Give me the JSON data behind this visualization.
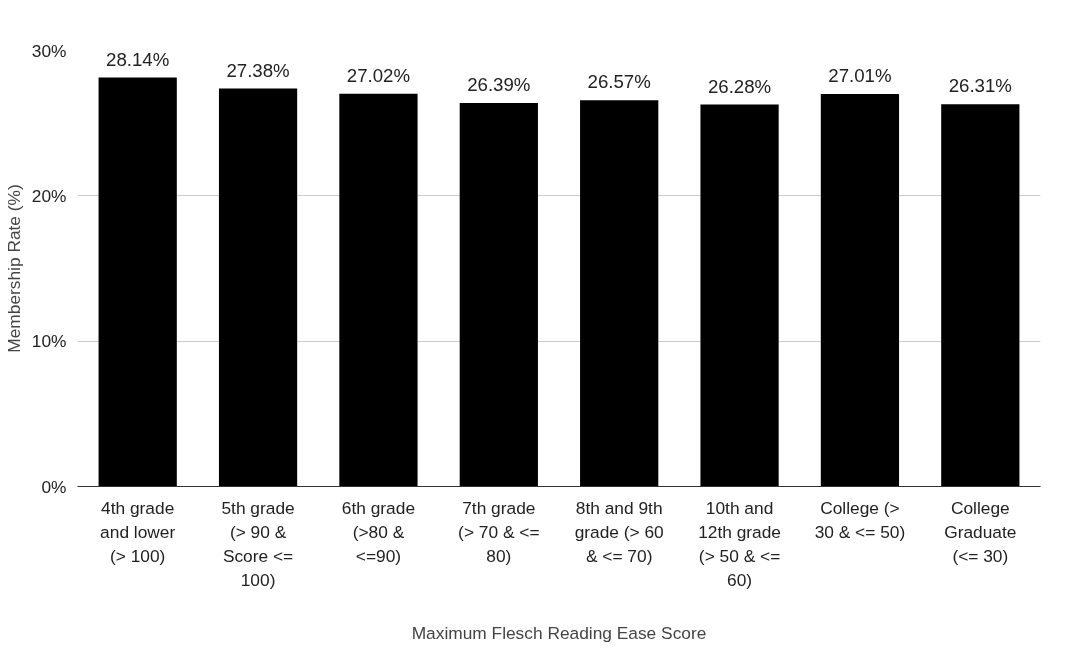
{
  "chart_data": {
    "type": "bar",
    "xlabel": "Maximum Flesch Reading Ease Score",
    "ylabel": "Membership Rate (%)",
    "categories": [
      "4th grade and lower (> 100)",
      "5th grade (> 90 & Score <= 100)",
      "6th grade (>80 & <=90)",
      "7th grade (> 70 & <= 80)",
      "8th and 9th grade (> 60 & <= 70)",
      "10th and 12th grade (> 50 & <= 60)",
      "College (> 30 & <= 50)",
      "College Graduate (<= 30)"
    ],
    "values": [
      28.14,
      27.38,
      27.02,
      26.39,
      26.57,
      26.28,
      27.01,
      26.31
    ],
    "value_labels": [
      "28.14%",
      "27.38%",
      "27.02%",
      "26.39%",
      "26.57%",
      "26.28%",
      "27.01%",
      "26.31%"
    ],
    "color": "#000000",
    "ylim": [
      0,
      30
    ],
    "yticks": [
      {
        "value": 0,
        "label": "0%"
      },
      {
        "value": 10,
        "label": "10%"
      },
      {
        "value": 20,
        "label": "20%"
      },
      {
        "value": 30,
        "label": "30%"
      }
    ],
    "grid": "y"
  }
}
